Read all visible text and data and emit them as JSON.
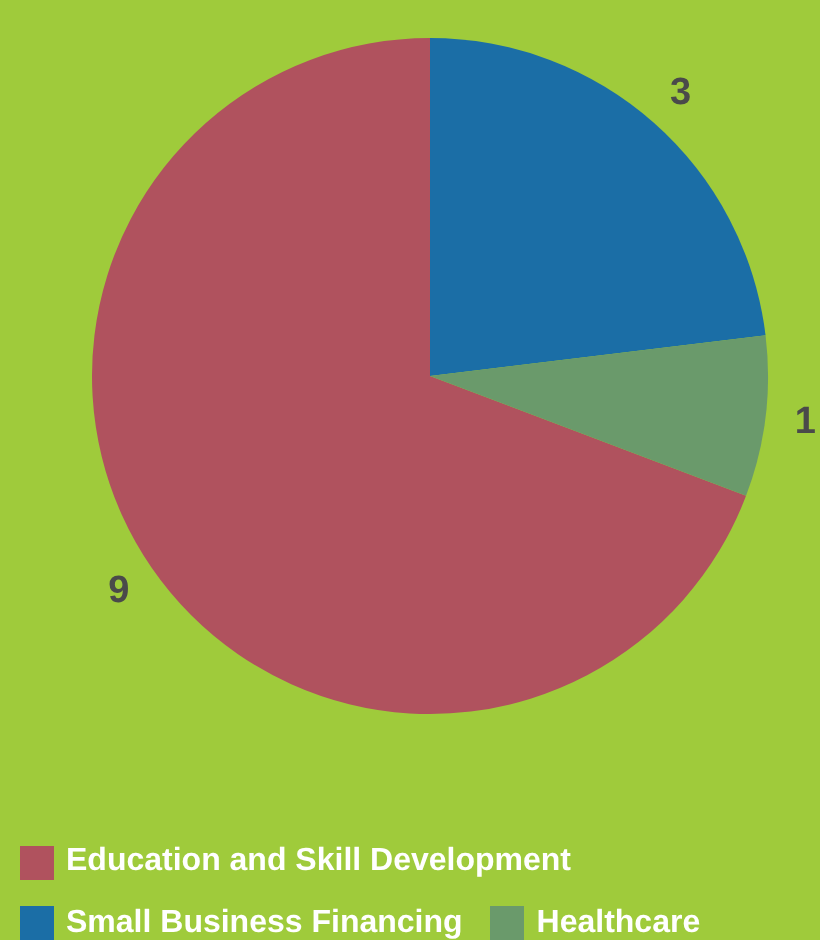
{
  "chart_data": {
    "type": "pie",
    "categories": [
      "Education and Skill Development",
      "Small Business Financing",
      "Healthcare"
    ],
    "values": [
      9,
      3,
      1
    ],
    "colors": [
      "#b0525e",
      "#1b6ea6",
      "#6a9a6b"
    ],
    "data_labels": true,
    "legend": "bottom"
  }
}
